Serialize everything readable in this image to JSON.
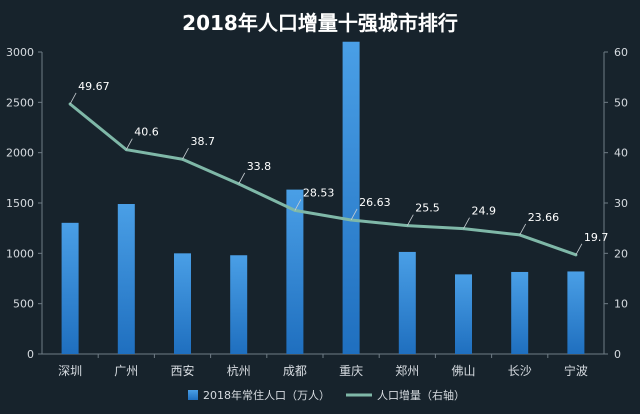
{
  "chart_data": {
    "type": "bar",
    "title": "2018年人口增量十强城市排行",
    "categories": [
      "深圳",
      "广州",
      "西安",
      "杭州",
      "成都",
      "重庆",
      "郑州",
      "佛山",
      "长沙",
      "宁波"
    ],
    "series": [
      {
        "name": "2018年常住人口（万人）",
        "type": "bar",
        "axis": "left",
        "color": "#3a8fd8",
        "values": [
          1303,
          1490,
          1000,
          981,
          1633,
          3102,
          1014,
          791,
          815,
          820
        ]
      },
      {
        "name": "人口增量（右轴）",
        "type": "line",
        "axis": "right",
        "color": "#7fb8a8",
        "values": [
          49.67,
          40.6,
          38.7,
          33.8,
          28.53,
          26.63,
          25.5,
          24.9,
          23.66,
          19.7
        ],
        "data_labels": [
          "49.67",
          "40.6",
          "38.7",
          "33.8",
          "28.53",
          "26.63",
          "25.5",
          "24.9",
          "23.66",
          "19.7"
        ]
      }
    ],
    "y_left": {
      "range": [
        0,
        3000
      ],
      "ticks": [
        "0",
        "500",
        "1000",
        "1500",
        "2000",
        "2500",
        "3000"
      ]
    },
    "y_right": {
      "range": [
        0,
        60
      ],
      "ticks": [
        "0",
        "10",
        "20",
        "30",
        "40",
        "50",
        "60"
      ]
    },
    "grid": false,
    "legend_position": "bottom"
  }
}
